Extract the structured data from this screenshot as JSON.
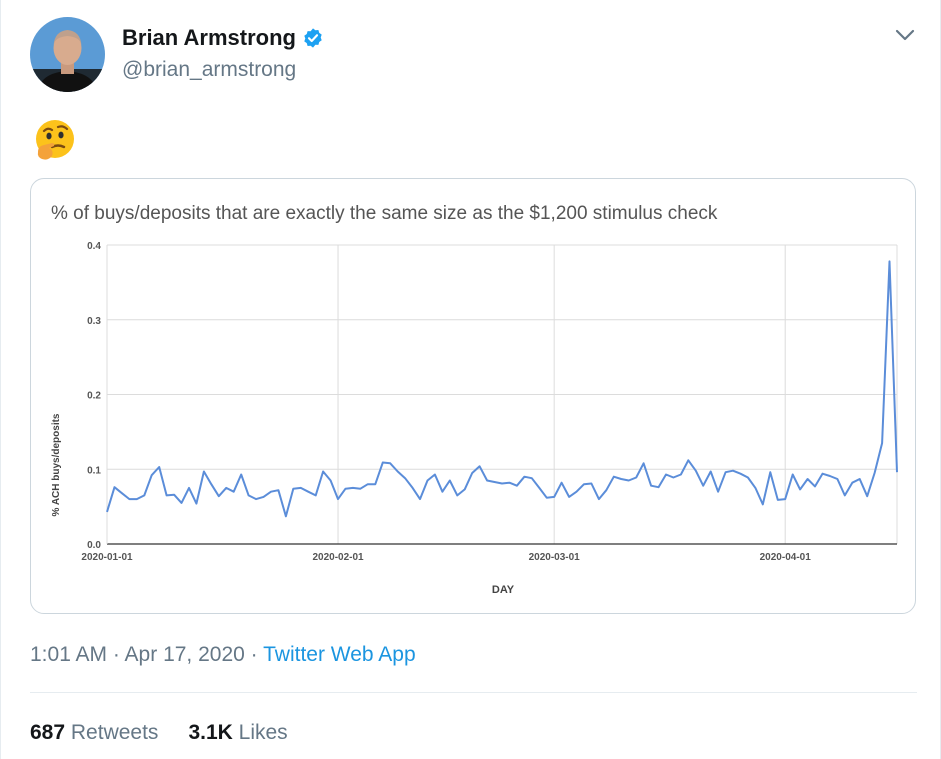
{
  "tweet": {
    "author": {
      "name": "Brian Armstrong",
      "handle": "@brian_armstrong",
      "verified": true,
      "avatar_icon": "person-avatar-icon"
    },
    "body_emoji": "thinking-face-emoji",
    "timestamp": "1:01 AM · Apr 17, 2020 ·",
    "source": "Twitter Web App",
    "stats": {
      "retweets_count": "687",
      "retweets_label": "Retweets",
      "likes_count": "3.1K",
      "likes_label": "Likes"
    }
  },
  "colors": {
    "accent": "#1da1f2",
    "link": "#1b95e0",
    "line_series": "#5b8dd9",
    "muted": "#657786"
  },
  "chart_data": {
    "type": "line",
    "title": "% of buys/deposits that are exactly the same size as the $1,200 stimulus check",
    "xlabel": "DAY",
    "ylabel": "% ACH buys/deposits",
    "ylim": [
      0,
      0.4
    ],
    "y_ticks": [
      "0.0",
      "0.1",
      "0.2",
      "0.3",
      "0.4"
    ],
    "x_ticks": [
      "2020-01-01",
      "2020-02-01",
      "2020-03-01",
      "2020-04-01"
    ],
    "x_start": "2020-01-01",
    "x_end": "2020-04-16",
    "grid": true,
    "series": [
      {
        "values": [
          0.043,
          0.076,
          0.068,
          0.06,
          0.06,
          0.065,
          0.092,
          0.103,
          0.065,
          0.066,
          0.055,
          0.075,
          0.054,
          0.097,
          0.08,
          0.064,
          0.075,
          0.07,
          0.093,
          0.065,
          0.06,
          0.063,
          0.07,
          0.072,
          0.037,
          0.074,
          0.075,
          0.07,
          0.065,
          0.097,
          0.085,
          0.06,
          0.074,
          0.075,
          0.074,
          0.08,
          0.08,
          0.109,
          0.108,
          0.097,
          0.088,
          0.075,
          0.06,
          0.085,
          0.093,
          0.07,
          0.085,
          0.065,
          0.073,
          0.095,
          0.104,
          0.085,
          0.083,
          0.081,
          0.082,
          0.078,
          0.09,
          0.088,
          0.075,
          0.062,
          0.063,
          0.082,
          0.063,
          0.07,
          0.08,
          0.081,
          0.06,
          0.072,
          0.09,
          0.087,
          0.085,
          0.089,
          0.108,
          0.078,
          0.076,
          0.093,
          0.089,
          0.093,
          0.112,
          0.098,
          0.078,
          0.097,
          0.07,
          0.096,
          0.098,
          0.094,
          0.089,
          0.075,
          0.053,
          0.096,
          0.059,
          0.06,
          0.093,
          0.073,
          0.087,
          0.077,
          0.094,
          0.091,
          0.087,
          0.065,
          0.082,
          0.087,
          0.064,
          0.095,
          0.135,
          0.378,
          0.096
        ]
      }
    ]
  }
}
